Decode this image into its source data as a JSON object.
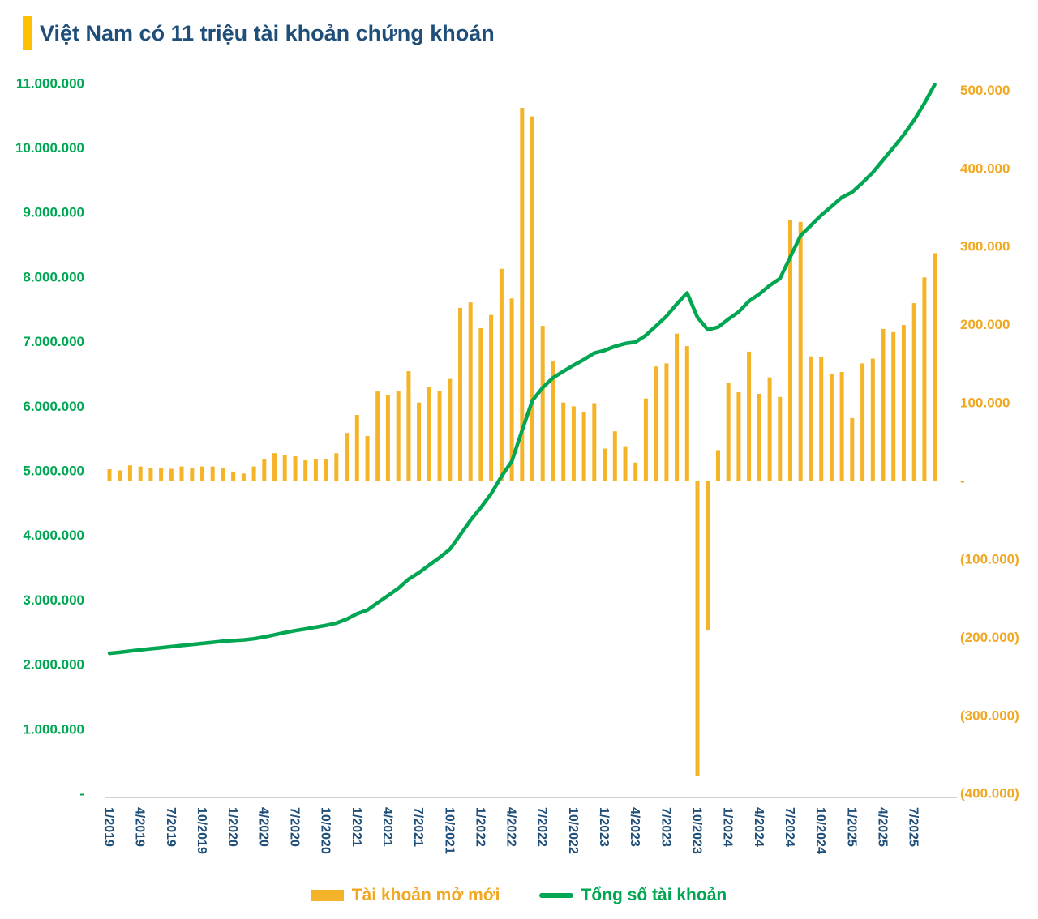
{
  "header": {
    "title": "Việt Nam có 11 triệu tài khoản chứng khoán"
  },
  "legend": {
    "items": [
      {
        "label": "Tài khoản mở mới",
        "type": "bar"
      },
      {
        "label": "Tổng số tài khoản",
        "type": "line"
      }
    ]
  },
  "colors": {
    "bar": "#F5B329",
    "line": "#00A651",
    "title": "#1F4E79",
    "left_axis_text": "#00A651",
    "right_axis_text": "#F0A822",
    "x_axis_text": "#1F4E79",
    "axis_line": "#C9C9C9",
    "title_accent": "#FFC000"
  },
  "chart_data": {
    "type": "combo",
    "title": "Việt Nam có 11 triệu tài khoản chứng khoán",
    "x": [
      "1/2019",
      "2/2019",
      "3/2019",
      "4/2019",
      "5/2019",
      "6/2019",
      "7/2019",
      "8/2019",
      "9/2019",
      "10/2019",
      "11/2019",
      "12/2019",
      "1/2020",
      "2/2020",
      "3/2020",
      "4/2020",
      "5/2020",
      "6/2020",
      "7/2020",
      "8/2020",
      "9/2020",
      "10/2020",
      "11/2020",
      "12/2020",
      "1/2021",
      "2/2021",
      "3/2021",
      "4/2021",
      "5/2021",
      "6/2021",
      "7/2021",
      "8/2021",
      "9/2021",
      "10/2021",
      "11/2021",
      "12/2021",
      "1/2022",
      "2/2022",
      "3/2022",
      "4/2022",
      "5/2022",
      "6/2022",
      "7/2022",
      "8/2022",
      "9/2022",
      "10/2022",
      "11/2022",
      "12/2022",
      "1/2023",
      "2/2023",
      "3/2023",
      "4/2023",
      "5/2023",
      "6/2023",
      "7/2023",
      "8/2023",
      "9/2023",
      "10/2023",
      "11/2023",
      "12/2023",
      "1/2024",
      "2/2024",
      "3/2024",
      "4/2024",
      "5/2024",
      "6/2024",
      "7/2024",
      "8/2024",
      "9/2024",
      "10/2024",
      "11/2024",
      "12/2024",
      "1/2025",
      "2/2025",
      "3/2025",
      "4/2025",
      "5/2025",
      "6/2025",
      "7/2025",
      "8/2025",
      "9/2025"
    ],
    "x_tick_labels": [
      "1/2019",
      "4/2019",
      "7/2019",
      "10/2019",
      "1/2020",
      "4/2020",
      "7/2020",
      "10/2020",
      "1/2021",
      "4/2021",
      "7/2021",
      "10/2021",
      "1/2022",
      "4/2022",
      "7/2022",
      "10/2022",
      "1/2023",
      "4/2023",
      "7/2023",
      "10/2023",
      "1/2024",
      "4/2024",
      "7/2024",
      "10/2024",
      "1/2025",
      "4/2025",
      "7/2025"
    ],
    "x_tick_step": 3,
    "series": [
      {
        "name": "Tài khoản mở mới",
        "type": "bar",
        "yaxis": "right",
        "values": [
          14500,
          13000,
          19500,
          18000,
          16500,
          16500,
          15000,
          18000,
          16500,
          18000,
          18000,
          16500,
          11000,
          9000,
          18000,
          27000,
          35000,
          33000,
          31000,
          26000,
          27000,
          28000,
          35000,
          61000,
          84000,
          57000,
          114000,
          109000,
          115000,
          140000,
          100000,
          120000,
          115000,
          130000,
          221000,
          228000,
          195000,
          212000,
          271000,
          233000,
          477000,
          466000,
          198000,
          153000,
          100000,
          95000,
          88000,
          99000,
          41000,
          63000,
          44000,
          23000,
          105000,
          146000,
          150000,
          188000,
          172000,
          -378000,
          -192000,
          39000,
          125000,
          113000,
          165000,
          111000,
          132000,
          107000,
          333000,
          331000,
          159000,
          158000,
          136000,
          139000,
          80000,
          150000,
          156000,
          194000,
          190000,
          199000,
          227000,
          260000,
          291000
        ]
      },
      {
        "name": "Tổng số tài khoản",
        "type": "line",
        "yaxis": "left",
        "values": [
          2170000,
          2184000,
          2204000,
          2222000,
          2240000,
          2256000,
          2272000,
          2290000,
          2305000,
          2322000,
          2339000,
          2356000,
          2367000,
          2376000,
          2394000,
          2421000,
          2456000,
          2489000,
          2520000,
          2546000,
          2573000,
          2601000,
          2636000,
          2697000,
          2781000,
          2838000,
          2952000,
          3061000,
          3176000,
          3316000,
          3416000,
          3536000,
          3651000,
          3781000,
          4002000,
          4230000,
          4425000,
          4637000,
          4908000,
          5141000,
          5618000,
          6084000,
          6282000,
          6435000,
          6535000,
          6630000,
          6718000,
          6817000,
          6858000,
          6921000,
          6965000,
          6988000,
          7093000,
          7239000,
          7389000,
          7577000,
          7749000,
          7371000,
          7179000,
          7218000,
          7343000,
          7456000,
          7621000,
          7732000,
          7864000,
          7971000,
          8304000,
          8635000,
          8794000,
          8952000,
          9088000,
          9227000,
          9307000,
          9457000,
          9613000,
          9807000,
          9997000,
          10196000,
          10423000,
          10683000,
          10974000
        ]
      }
    ],
    "left_axis": {
      "labels": [
        "11.000.000",
        "10.000.000",
        "9.000.000",
        "8.000.000",
        "7.000.000",
        "6.000.000",
        "5.000.000",
        "4.000.000",
        "3.000.000",
        "2.000.000",
        "1.000.000",
        "-"
      ],
      "values": [
        11000000,
        10000000,
        9000000,
        8000000,
        7000000,
        6000000,
        5000000,
        4000000,
        3000000,
        2000000,
        1000000,
        0
      ],
      "range": [
        0,
        11000000
      ]
    },
    "right_axis": {
      "labels": [
        "500.000",
        "400.000",
        "300.000",
        "200.000",
        "100.000",
        "-",
        "(100.000)",
        "(200.000)",
        "(300.000)",
        "(400.000)"
      ],
      "values": [
        500000,
        400000,
        300000,
        200000,
        100000,
        0,
        -100000,
        -200000,
        -300000,
        -400000
      ],
      "range": [
        -400000,
        500000
      ]
    },
    "grid": false,
    "legend_position": "bottom"
  }
}
